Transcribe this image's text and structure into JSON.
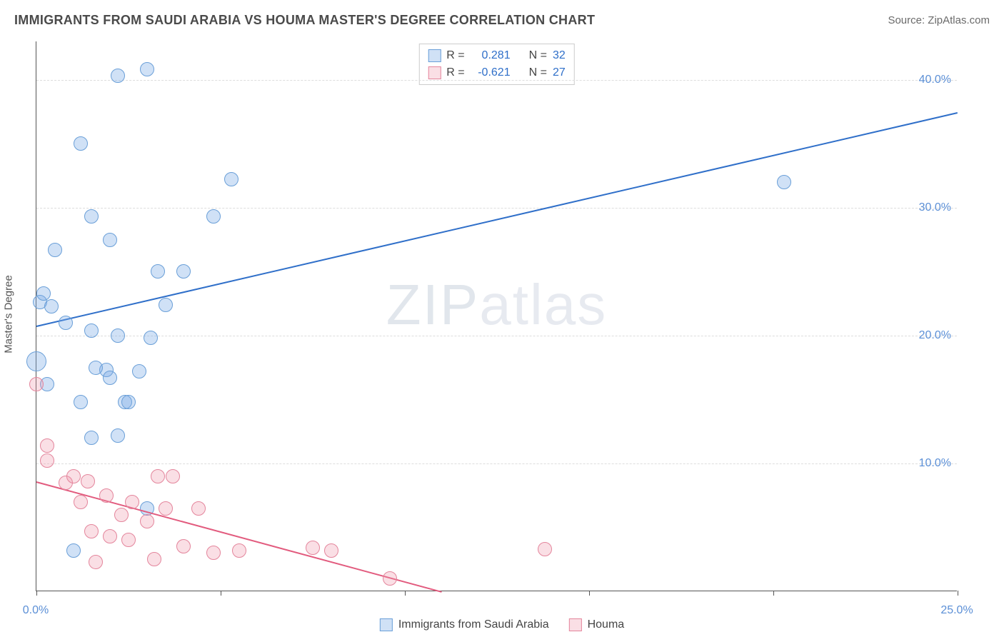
{
  "header": {
    "title": "IMMIGRANTS FROM SAUDI ARABIA VS HOUMA MASTER'S DEGREE CORRELATION CHART",
    "source": "Source: ZipAtlas.com"
  },
  "chart": {
    "type": "scatter",
    "y_label": "Master's Degree",
    "watermark": "ZIPatlas",
    "background_color": "#ffffff",
    "grid_color": "#e2e2e2",
    "axis_color": "#555555",
    "text_color": "#555555",
    "tick_label_color": "#5b8fd6",
    "xlim": [
      0,
      25
    ],
    "ylim": [
      0,
      43
    ],
    "x_ticks": [
      0,
      5,
      10,
      15,
      20,
      25
    ],
    "x_tick_labels": [
      "0.0%",
      "",
      "",
      "",
      "",
      "25.0%"
    ],
    "y_gridlines": [
      10,
      20,
      30,
      40
    ],
    "y_tick_labels": [
      "10.0%",
      "20.0%",
      "30.0%",
      "40.0%"
    ],
    "marker_radius": 10,
    "marker_stroke_width": 1.5,
    "series": [
      {
        "name": "Immigrants from Saudi Arabia",
        "fill_color": "rgba(120, 170, 230, 0.35)",
        "stroke_color": "#6a9fd8",
        "line_color": "#2f6fc9",
        "R_label": "R =",
        "R_value": "0.281",
        "N_label": "N =",
        "N_value": "32",
        "trend": {
          "x1": 0,
          "y1": 20.8,
          "x2": 25,
          "y2": 37.5
        },
        "points": [
          {
            "x": 0.0,
            "y": 18.0,
            "r": 14
          },
          {
            "x": 0.1,
            "y": 22.6
          },
          {
            "x": 0.4,
            "y": 22.3
          },
          {
            "x": 0.2,
            "y": 23.3
          },
          {
            "x": 0.8,
            "y": 21.0
          },
          {
            "x": 0.5,
            "y": 26.7
          },
          {
            "x": 1.5,
            "y": 29.3
          },
          {
            "x": 2.0,
            "y": 27.5
          },
          {
            "x": 2.2,
            "y": 40.3
          },
          {
            "x": 3.0,
            "y": 40.8
          },
          {
            "x": 1.2,
            "y": 35.0
          },
          {
            "x": 1.5,
            "y": 20.4
          },
          {
            "x": 1.9,
            "y": 17.3
          },
          {
            "x": 2.0,
            "y": 16.7
          },
          {
            "x": 2.2,
            "y": 20.0
          },
          {
            "x": 2.4,
            "y": 14.8
          },
          {
            "x": 1.2,
            "y": 14.8
          },
          {
            "x": 1.5,
            "y": 12.0
          },
          {
            "x": 2.2,
            "y": 12.2
          },
          {
            "x": 2.5,
            "y": 14.8
          },
          {
            "x": 2.8,
            "y": 17.2
          },
          {
            "x": 3.1,
            "y": 19.8
          },
          {
            "x": 3.3,
            "y": 25.0
          },
          {
            "x": 3.5,
            "y": 22.4
          },
          {
            "x": 4.0,
            "y": 25.0
          },
          {
            "x": 4.8,
            "y": 29.3
          },
          {
            "x": 5.3,
            "y": 32.2
          },
          {
            "x": 20.3,
            "y": 32.0
          },
          {
            "x": 3.0,
            "y": 6.5
          },
          {
            "x": 1.0,
            "y": 3.2
          },
          {
            "x": 1.6,
            "y": 17.5
          },
          {
            "x": 0.3,
            "y": 16.2
          }
        ]
      },
      {
        "name": "Houma",
        "fill_color": "rgba(240, 150, 170, 0.30)",
        "stroke_color": "#e4859c",
        "line_color": "#e25b7e",
        "R_label": "R =",
        "R_value": "-0.621",
        "N_label": "N =",
        "N_value": "27",
        "trend": {
          "x1": 0,
          "y1": 8.6,
          "x2": 11.0,
          "y2": 0
        },
        "points": [
          {
            "x": 0.0,
            "y": 16.2
          },
          {
            "x": 0.3,
            "y": 11.4
          },
          {
            "x": 0.3,
            "y": 10.2
          },
          {
            "x": 0.8,
            "y": 8.5
          },
          {
            "x": 1.0,
            "y": 9.0
          },
          {
            "x": 1.2,
            "y": 7.0
          },
          {
            "x": 1.4,
            "y": 8.6
          },
          {
            "x": 1.9,
            "y": 7.5
          },
          {
            "x": 1.5,
            "y": 4.7
          },
          {
            "x": 1.6,
            "y": 2.3
          },
          {
            "x": 2.0,
            "y": 4.3
          },
          {
            "x": 2.3,
            "y": 6.0
          },
          {
            "x": 2.5,
            "y": 4.0
          },
          {
            "x": 2.6,
            "y": 7.0
          },
          {
            "x": 3.0,
            "y": 5.5
          },
          {
            "x": 3.3,
            "y": 9.0
          },
          {
            "x": 3.7,
            "y": 9.0
          },
          {
            "x": 3.5,
            "y": 6.5
          },
          {
            "x": 3.2,
            "y": 2.5
          },
          {
            "x": 4.0,
            "y": 3.5
          },
          {
            "x": 4.4,
            "y": 6.5
          },
          {
            "x": 4.8,
            "y": 3.0
          },
          {
            "x": 5.5,
            "y": 3.2
          },
          {
            "x": 7.5,
            "y": 3.4
          },
          {
            "x": 8.0,
            "y": 3.2
          },
          {
            "x": 9.6,
            "y": 1.0
          },
          {
            "x": 13.8,
            "y": 3.3
          }
        ]
      }
    ]
  }
}
